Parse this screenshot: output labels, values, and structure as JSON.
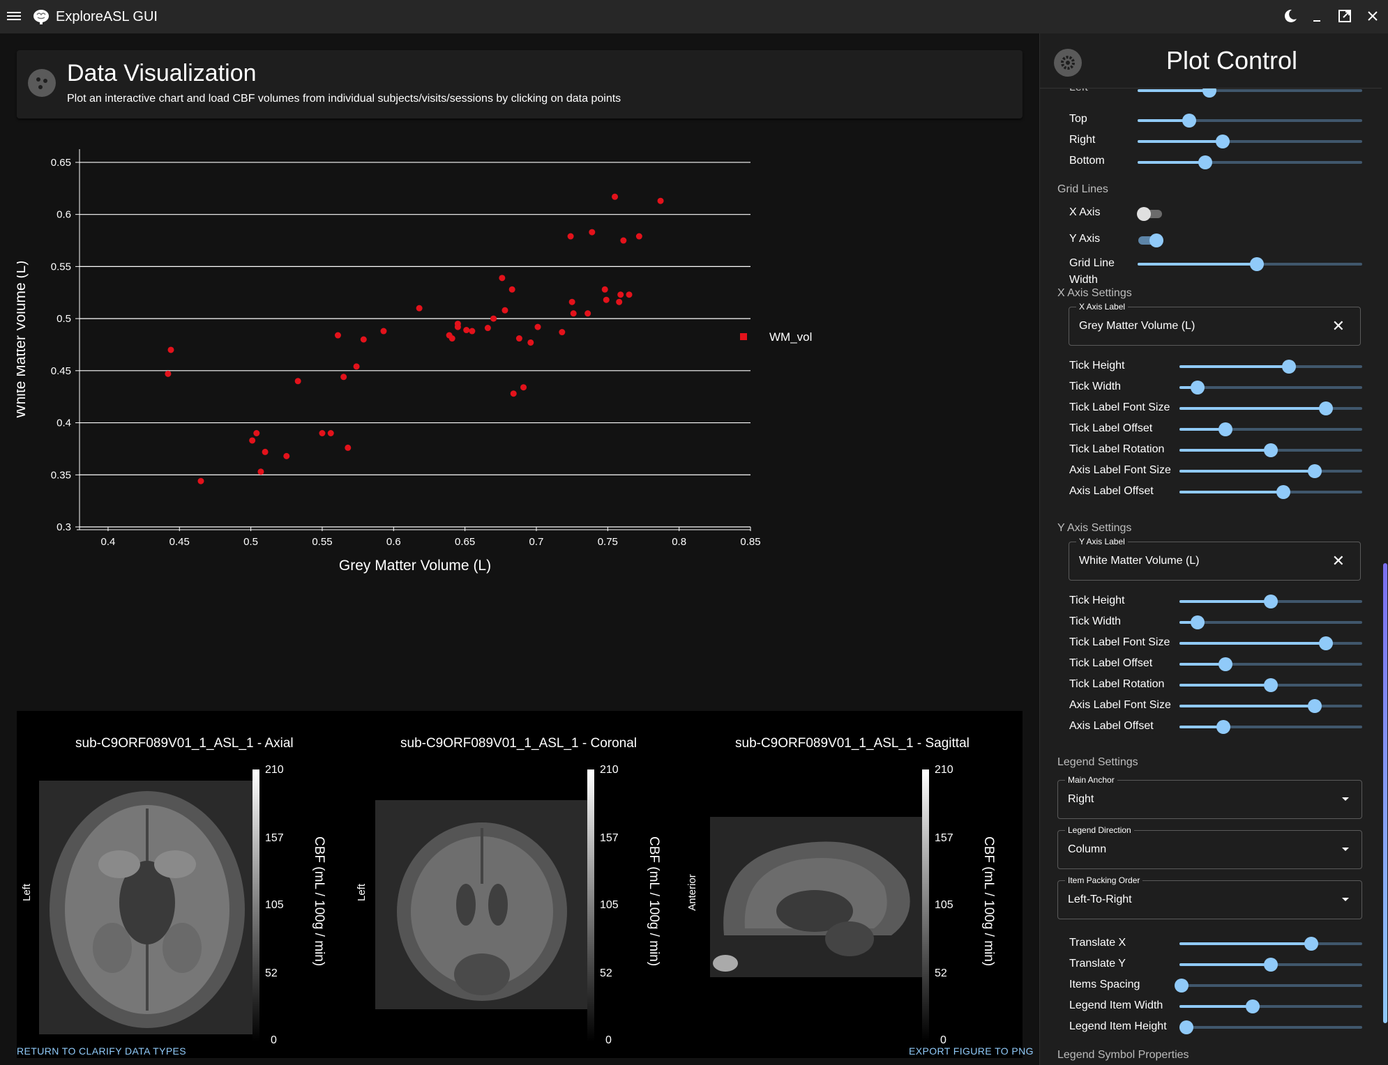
{
  "app": {
    "title": "ExploreASL GUI"
  },
  "header": {
    "title": "Data Visualization",
    "subtitle": "Plot an interactive chart and load CBF volumes from individual subjects/visits/sessions by clicking on data points"
  },
  "colors": {
    "accent": "#90caf9",
    "point": "#e3121b",
    "background": "#121212",
    "panel": "#1e1e1e"
  },
  "chart_data": {
    "type": "scatter",
    "xlabel": "Grey Matter Volume (L)",
    "ylabel": "White Matter Volume (L)",
    "xlim": [
      0.38,
      0.85
    ],
    "ylim": [
      0.3,
      0.66
    ],
    "xticks": [
      "0.4",
      "0.45",
      "0.5",
      "0.55",
      "0.6",
      "0.65",
      "0.7",
      "0.75",
      "0.8",
      "0.85"
    ],
    "yticks": [
      "0.3",
      "0.35",
      "0.4",
      "0.45",
      "0.5",
      "0.55",
      "0.6",
      "0.65"
    ],
    "grid": {
      "x": false,
      "y": true
    },
    "legend": {
      "position": "right",
      "entries": [
        "WM_vol"
      ]
    },
    "series": [
      {
        "name": "WM_vol",
        "points": [
          [
            0.442,
            0.447
          ],
          [
            0.444,
            0.47
          ],
          [
            0.465,
            0.344
          ],
          [
            0.501,
            0.383
          ],
          [
            0.504,
            0.39
          ],
          [
            0.507,
            0.353
          ],
          [
            0.51,
            0.372
          ],
          [
            0.525,
            0.368
          ],
          [
            0.533,
            0.44
          ],
          [
            0.55,
            0.39
          ],
          [
            0.556,
            0.39
          ],
          [
            0.561,
            0.484
          ],
          [
            0.565,
            0.444
          ],
          [
            0.568,
            0.376
          ],
          [
            0.574,
            0.454
          ],
          [
            0.579,
            0.48
          ],
          [
            0.593,
            0.488
          ],
          [
            0.618,
            0.51
          ],
          [
            0.639,
            0.484
          ],
          [
            0.641,
            0.481
          ],
          [
            0.645,
            0.492
          ],
          [
            0.645,
            0.495
          ],
          [
            0.651,
            0.489
          ],
          [
            0.655,
            0.488
          ],
          [
            0.666,
            0.491
          ],
          [
            0.67,
            0.5
          ],
          [
            0.676,
            0.539
          ],
          [
            0.678,
            0.508
          ],
          [
            0.683,
            0.528
          ],
          [
            0.684,
            0.428
          ],
          [
            0.688,
            0.481
          ],
          [
            0.691,
            0.434
          ],
          [
            0.696,
            0.477
          ],
          [
            0.701,
            0.492
          ],
          [
            0.718,
            0.487
          ],
          [
            0.724,
            0.579
          ],
          [
            0.725,
            0.516
          ],
          [
            0.726,
            0.505
          ],
          [
            0.736,
            0.505
          ],
          [
            0.739,
            0.583
          ],
          [
            0.748,
            0.528
          ],
          [
            0.749,
            0.518
          ],
          [
            0.755,
            0.617
          ],
          [
            0.758,
            0.516
          ],
          [
            0.759,
            0.523
          ],
          [
            0.761,
            0.575
          ],
          [
            0.765,
            0.523
          ],
          [
            0.772,
            0.579
          ],
          [
            0.787,
            0.613
          ]
        ]
      }
    ]
  },
  "viewer": {
    "axial": {
      "title": "sub-C9ORF089V01_1_ASL_1 - Axial",
      "side": "Left"
    },
    "coronal": {
      "title": "sub-C9ORF089V01_1_ASL_1 - Coronal",
      "side": "Left"
    },
    "sagittal": {
      "title": "sub-C9ORF089V01_1_ASL_1 - Sagittal",
      "side": "Anterior"
    },
    "colorbar": {
      "label": "CBF (mL / 100g / min)",
      "ticks": [
        "210",
        "157",
        "105",
        "52",
        "0"
      ]
    }
  },
  "footer": {
    "back": "RETURN TO CLARIFY DATA TYPES",
    "export": "EXPORT FIGURE TO PNG"
  },
  "panel": {
    "title": "Plot Control",
    "margins": {
      "partial": "Left",
      "top": "Top",
      "right": "Right",
      "bottom": "Bottom",
      "values": {
        "left": 0.32,
        "top": 0.23,
        "right": 0.38,
        "bottom": 0.3
      }
    },
    "grid": {
      "section": "Grid Lines",
      "x_label": "X Axis",
      "x_on": false,
      "y_label": "Y Axis",
      "y_on": true,
      "width_label_1": "Grid Line",
      "width_label_2": "Width",
      "width_value": 0.53
    },
    "xaxis": {
      "section": "X Axis Settings",
      "field_label": "X Axis Label",
      "field_value": "Grey Matter Volume (L)",
      "sliders": [
        {
          "label": "Tick Height",
          "value": 0.6
        },
        {
          "label": "Tick Width",
          "value": 0.1
        },
        {
          "label": "Tick Label Font Size",
          "value": 0.8
        },
        {
          "label": "Tick Label Offset",
          "value": 0.25
        },
        {
          "label": "Tick Label Rotation",
          "value": 0.5
        },
        {
          "label": "Axis Label Font Size",
          "value": 0.74
        },
        {
          "label": "Axis Label Offset",
          "value": 0.57
        }
      ]
    },
    "yaxis": {
      "section": "Y Axis Settings",
      "field_label": "Y Axis Label",
      "field_value": "White Matter Volume (L)",
      "sliders": [
        {
          "label": "Tick Height",
          "value": 0.5
        },
        {
          "label": "Tick Width",
          "value": 0.1
        },
        {
          "label": "Tick Label Font Size",
          "value": 0.8
        },
        {
          "label": "Tick Label Offset",
          "value": 0.25
        },
        {
          "label": "Tick Label Rotation",
          "value": 0.5
        },
        {
          "label": "Axis Label Font Size",
          "value": 0.74
        },
        {
          "label": "Axis Label Offset",
          "value": 0.24
        }
      ]
    },
    "legend": {
      "section": "Legend Settings",
      "anchor_label": "Main Anchor",
      "anchor_value": "Right",
      "direction_label": "Legend Direction",
      "direction_value": "Column",
      "packing_label": "Item Packing Order",
      "packing_value": "Left-To-Right",
      "sliders": [
        {
          "label": "Translate X",
          "value": 0.72
        },
        {
          "label": "Translate Y",
          "value": 0.5
        },
        {
          "label": "Items Spacing",
          "value": 0.01
        },
        {
          "label": "Legend Item Width",
          "value": 0.4
        },
        {
          "label": "Legend Item Height",
          "value": 0.04
        }
      ],
      "next_section": "Legend Symbol Properties"
    }
  }
}
